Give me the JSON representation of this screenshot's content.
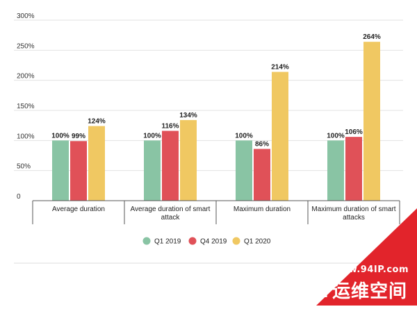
{
  "chart_data": {
    "type": "bar",
    "categories": [
      [
        "Average duration"
      ],
      [
        "Average duration of smart",
        "attack"
      ],
      [
        "Maximum duration"
      ],
      [
        "Maximum duration of smart",
        "attacks"
      ]
    ],
    "series": [
      {
        "name": "Q1 2019",
        "color": "#89c4a4",
        "values": [
          100,
          100,
          100,
          100
        ],
        "labels": [
          "100%",
          "100%",
          "100%",
          "100%"
        ]
      },
      {
        "name": "Q4 2019",
        "color": "#e05158",
        "values": [
          99,
          116,
          86,
          106
        ],
        "labels": [
          "99%",
          "116%",
          "86%",
          "106%"
        ]
      },
      {
        "name": "Q1 2020",
        "color": "#f0c862",
        "values": [
          124,
          134,
          214,
          264
        ],
        "labels": [
          "124%",
          "134%",
          "214%",
          "264%"
        ]
      }
    ],
    "ylim": [
      0,
      300
    ],
    "yticks": [
      0,
      50,
      100,
      150,
      200,
      250,
      300
    ],
    "ytick_labels": [
      "0",
      "50%",
      "100%",
      "150%",
      "200%",
      "250%",
      "300%"
    ],
    "grid": true,
    "legend_position": "bottom"
  },
  "watermark": {
    "url": "www.94IP.com",
    "text": "IT运维空间"
  }
}
